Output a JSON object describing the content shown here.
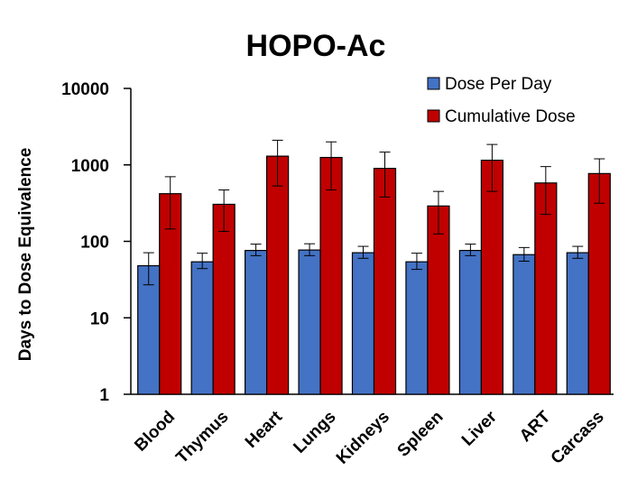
{
  "chart_data": {
    "type": "bar",
    "title": "HOPO-Ac",
    "xlabel": "",
    "ylabel": "Days to Dose Equivalence",
    "yscale": "log",
    "ylim": [
      1,
      10000
    ],
    "yticks": [
      "1",
      "10",
      "100",
      "1000",
      "10000"
    ],
    "grid": false,
    "legend_position": "top-right",
    "categories": [
      "Blood",
      "Thymus",
      "Heart",
      "Lungs",
      "Kidneys",
      "Spleen",
      "Liver",
      "ART",
      "Carcass"
    ],
    "series": [
      {
        "name": "Dose Per Day",
        "color": "#4472c4",
        "values": [
          48,
          54,
          76,
          77,
          71,
          54,
          76,
          67,
          71
        ],
        "error_low": [
          27,
          44,
          65,
          65,
          60,
          43,
          65,
          55,
          60
        ],
        "error_high": [
          71,
          70,
          92,
          93,
          86,
          70,
          92,
          83,
          86
        ]
      },
      {
        "name": "Cumulative Dose",
        "color": "#c00000",
        "values": [
          420,
          305,
          1300,
          1250,
          900,
          290,
          1150,
          580,
          770
        ],
        "error_low": [
          145,
          135,
          530,
          470,
          380,
          125,
          450,
          225,
          315
        ],
        "error_high": [
          700,
          470,
          2100,
          2000,
          1470,
          450,
          1850,
          950,
          1200
        ]
      }
    ]
  }
}
